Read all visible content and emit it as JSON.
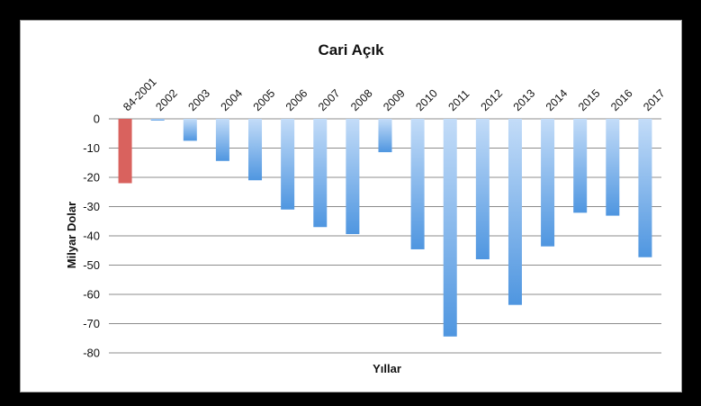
{
  "chart_data": {
    "type": "bar",
    "title": "Cari Açık",
    "xlabel": "Yıllar",
    "ylabel": "Milyar Dolar",
    "categories": [
      "84-2001",
      "2002",
      "2003",
      "2004",
      "2005",
      "2006",
      "2007",
      "2008",
      "2009",
      "2010",
      "2011",
      "2012",
      "2013",
      "2014",
      "2015",
      "2016",
      "2017"
    ],
    "values": [
      -22,
      -0.6,
      -7.5,
      -14.4,
      -21,
      -31,
      -37,
      -39.4,
      -11.4,
      -44.6,
      -74.4,
      -48,
      -63.6,
      -43.6,
      -32.1,
      -33.1,
      -47.3
    ],
    "highlight_index": 0,
    "ylim": [
      -80,
      0
    ],
    "yticks": [
      "0",
      "-10",
      "-20",
      "-30",
      "-40",
      "-50",
      "-60",
      "-70",
      "-80"
    ],
    "grid": true,
    "legend": "none",
    "colors": {
      "highlight": "#d9625e",
      "bar_light": "#c3dcf8",
      "bar_dark": "#4f96e0",
      "grid": "#666666"
    }
  }
}
